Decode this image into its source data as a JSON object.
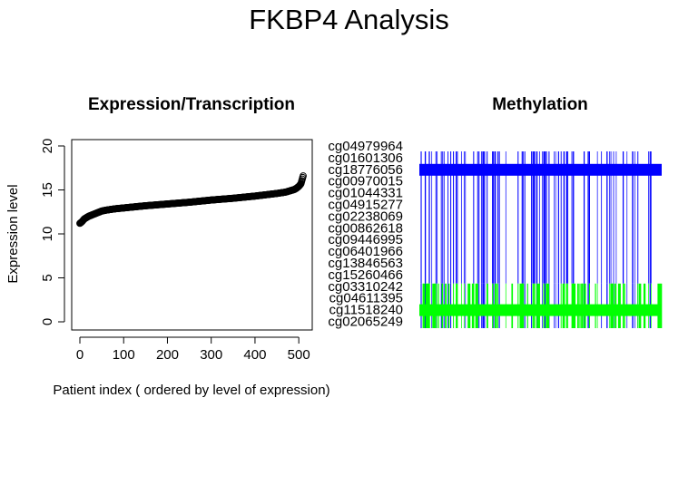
{
  "title": "FKBP4 Analysis",
  "chart_data": [
    {
      "type": "scatter",
      "title": "Expression/Transcription",
      "xlabel": "Patient index ( ordered by level of expression)",
      "ylabel": "Expression level",
      "xlim": [
        0,
        510
      ],
      "ylim": [
        0,
        20
      ],
      "x_ticks": [
        "0",
        "100",
        "200",
        "300",
        "400",
        "500"
      ],
      "y_ticks": [
        "0",
        "5",
        "10",
        "15",
        "20"
      ],
      "curve": {
        "n_points": 511,
        "knots_x": [
          0,
          5,
          10,
          20,
          30,
          40,
          50,
          60,
          80,
          100,
          150,
          200,
          250,
          300,
          350,
          400,
          450,
          470,
          480,
          490,
          495,
          500,
          505,
          510
        ],
        "knots_y": [
          11.2,
          11.4,
          11.7,
          12.0,
          12.2,
          12.4,
          12.6,
          12.7,
          12.85,
          12.95,
          13.2,
          13.4,
          13.6,
          13.85,
          14.05,
          14.3,
          14.6,
          14.75,
          14.9,
          15.05,
          15.2,
          15.4,
          15.7,
          16.6
        ]
      },
      "marker_color": "#000000"
    },
    {
      "type": "heatmap",
      "title": "Methylation",
      "probes": [
        "cg04979964",
        "cg01601306",
        "cg18776056",
        "cg00970015",
        "cg01044331",
        "cg04915277",
        "cg02238069",
        "cg00862618",
        "cg09446995",
        "cg06401966",
        "cg13846563",
        "cg15260466",
        "cg03310242",
        "cg04611395",
        "cg11518240",
        "cg02065249"
      ],
      "colors": {
        "high": "#0000ff",
        "low": "#00ff00"
      },
      "band_rows": {
        "cg18776056": "high",
        "cg11518240": "low"
      },
      "low_region_probes": [
        "cg03310242",
        "cg04611395",
        "cg11518240",
        "cg02065249"
      ]
    }
  ]
}
